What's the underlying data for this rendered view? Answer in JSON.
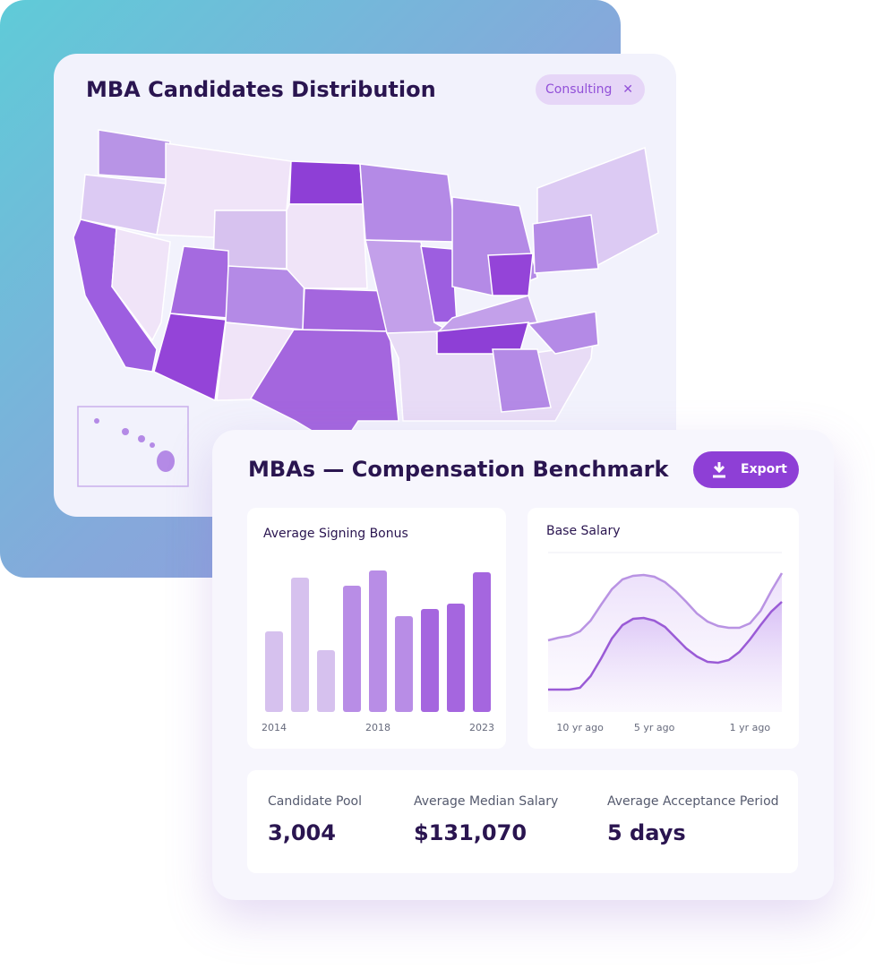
{
  "map_card": {
    "title": "MBA Candidates Distribution",
    "filter": "Consulting"
  },
  "benchmark": {
    "title": "MBAs — Compensation Benchmark",
    "export": "Export",
    "stats": [
      {
        "label": "Candidate Pool",
        "value": "3,004"
      },
      {
        "label": "Average Median Salary",
        "value": "$131,070"
      },
      {
        "label": "Average Acceptance Period",
        "value": "5 days"
      }
    ]
  },
  "chart_data": [
    {
      "type": "bar",
      "title": "Average Signing Bonus",
      "categories": [
        "2014",
        null,
        null,
        null,
        "2018",
        null,
        null,
        null,
        "2023"
      ],
      "values": [
        90,
        150,
        69,
        141,
        158,
        107,
        115,
        121,
        156
      ],
      "colors": [
        "#d6c1ee",
        "#d6c1ee",
        "#d6c1ee",
        "#b88de6",
        "#b88de6",
        "#b88de6",
        "#a566df",
        "#a566df",
        "#a566df"
      ],
      "ylim": [
        0,
        170
      ]
    },
    {
      "type": "line",
      "title": "Base Salary",
      "categories": [
        null,
        null,
        null,
        "10 yr ago",
        null,
        null,
        null,
        null,
        null,
        null,
        "5 yr ago",
        null,
        null,
        null,
        null,
        null,
        null,
        null,
        null,
        "1 yr ago",
        null,
        null,
        null
      ],
      "series": [
        {
          "color": "#b993e3",
          "values": [
            80,
            83,
            85,
            90,
            102,
            120,
            137,
            148,
            152,
            153,
            151,
            145,
            135,
            123,
            110,
            101,
            96,
            94,
            94,
            99,
            113,
            135,
            155
          ]
        },
        {
          "color": "#9a5bd6",
          "values": [
            25,
            25,
            25,
            27,
            40,
            60,
            82,
            97,
            104,
            105,
            102,
            95,
            83,
            71,
            62,
            56,
            55,
            58,
            67,
            81,
            97,
            112,
            123
          ]
        }
      ],
      "ylim": [
        0,
        180
      ]
    }
  ]
}
